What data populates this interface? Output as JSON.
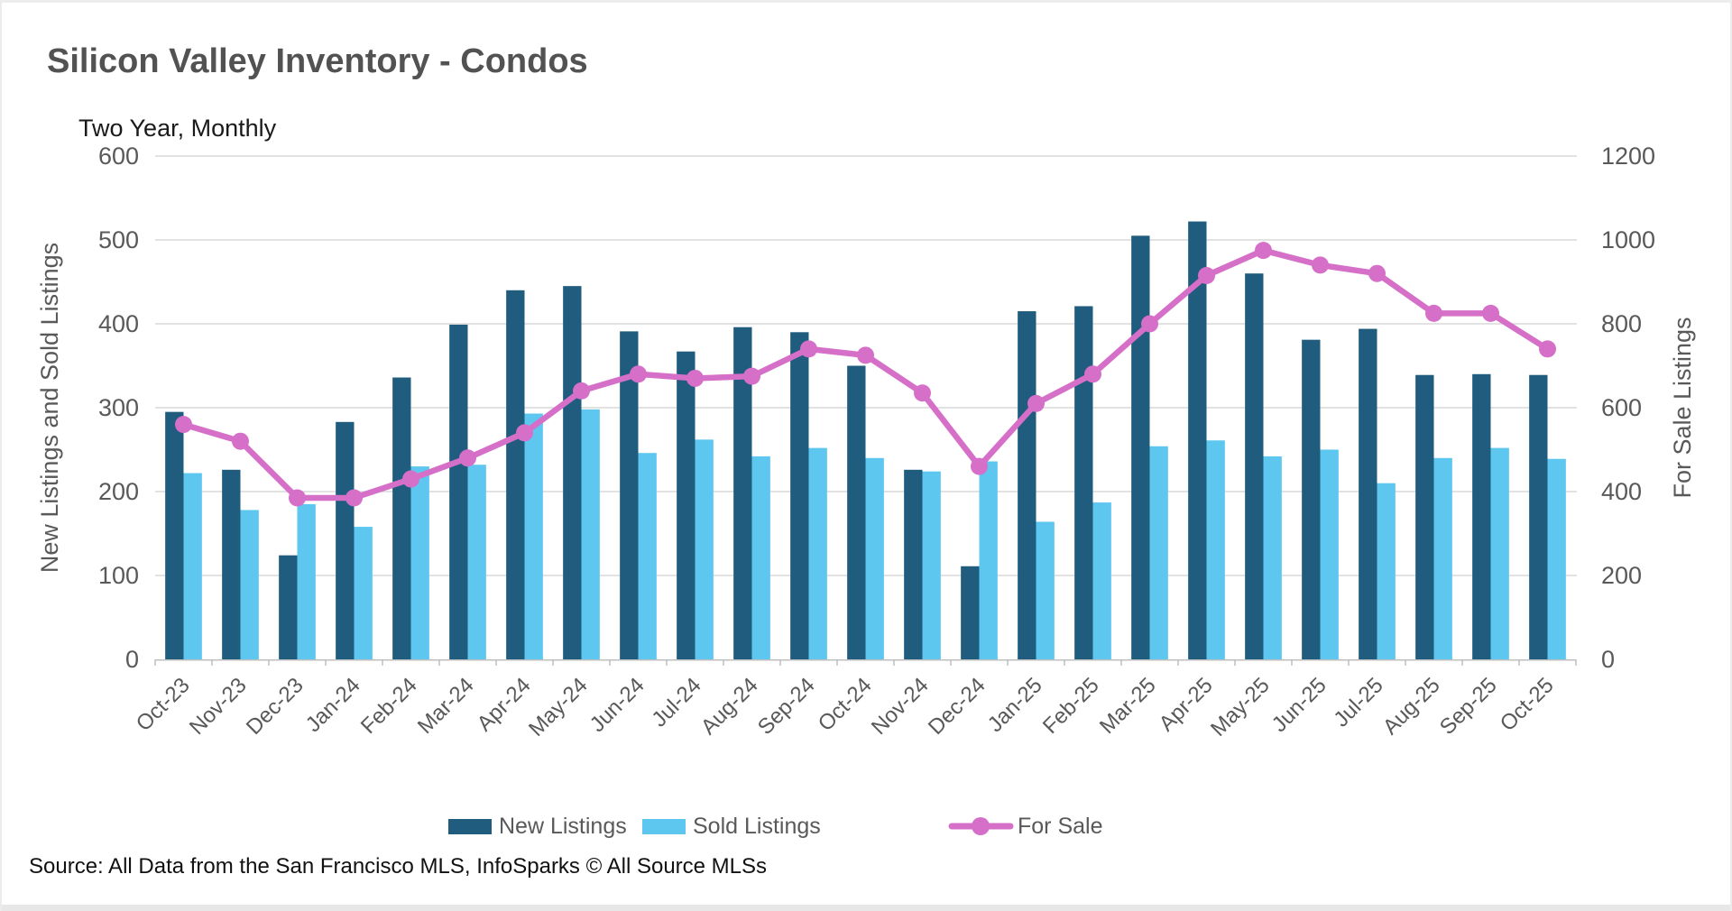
{
  "page": {
    "title": "Silicon Valley Inventory - Condos",
    "subtitle": "Two Year, Monthly",
    "source": "Source: All Data from the San Francisco MLS, InfoSparks © All Source MLSs"
  },
  "chart_data": {
    "type": "combo-bar-line",
    "categories": [
      "Oct-23",
      "Nov-23",
      "Dec-23",
      "Jan-24",
      "Feb-24",
      "Mar-24",
      "Apr-24",
      "May-24",
      "Jun-24",
      "Jul-24",
      "Aug-24",
      "Sep-24",
      "Oct-24",
      "Nov-24",
      "Dec-24",
      "Jan-25",
      "Feb-25",
      "Mar-25",
      "Apr-25",
      "May-25",
      "Jun-25",
      "Jul-25",
      "Aug-25",
      "Sep-25",
      "Oct-25"
    ],
    "series": [
      {
        "name": "New Listings",
        "type": "bar",
        "axis": "left",
        "color": "#1F5C7D",
        "values": [
          295,
          226,
          124,
          283,
          336,
          399,
          440,
          445,
          391,
          367,
          396,
          390,
          350,
          226,
          111,
          415,
          421,
          505,
          522,
          460,
          381,
          394,
          339,
          340,
          339
        ]
      },
      {
        "name": "Sold Listings",
        "type": "bar",
        "axis": "left",
        "color": "#5EC7EF",
        "values": [
          222,
          178,
          185,
          158,
          230,
          232,
          293,
          298,
          246,
          262,
          242,
          252,
          240,
          224,
          236,
          164,
          187,
          254,
          261,
          242,
          250,
          210,
          240,
          252,
          239
        ]
      },
      {
        "name": "For Sale",
        "type": "line",
        "axis": "right",
        "color": "#D56FC8",
        "values": [
          560,
          520,
          385,
          385,
          430,
          480,
          540,
          640,
          680,
          670,
          675,
          740,
          725,
          635,
          460,
          610,
          680,
          800,
          915,
          975,
          940,
          920,
          825,
          825,
          740
        ]
      }
    ],
    "left_axis": {
      "label": "New Listings and Sold Listings",
      "min": 0,
      "max": 600,
      "step": 100
    },
    "right_axis": {
      "label": "For Sale Listings",
      "min": 0,
      "max": 1200,
      "step": 200
    },
    "grid": true,
    "legend_position": "bottom"
  },
  "style": {
    "grid_color": "#D9D9D9",
    "axis_line_color": "#BFBFBF",
    "tick_text_color": "#595959",
    "axis_title_color": "#595959",
    "legend_text_color": "#595959"
  }
}
